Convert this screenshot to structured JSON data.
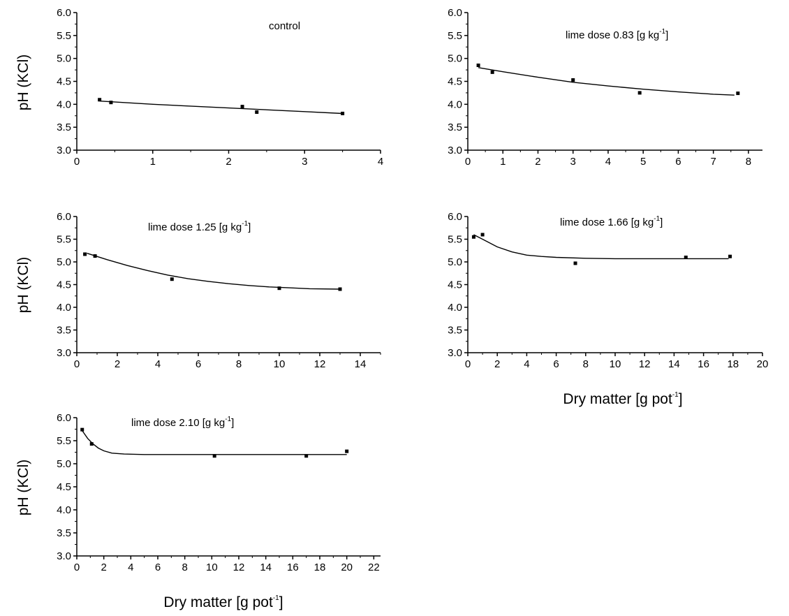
{
  "chart_data": [
    {
      "type": "scatter",
      "title": "control",
      "title_unit": "",
      "title_sup": "",
      "title_close": "",
      "ylabel": "pH (KCl)",
      "xlabel": "",
      "xlabel_sup": "",
      "xlabel_close": "",
      "xlim": [
        0,
        4
      ],
      "ylim": [
        3.0,
        6.0
      ],
      "xticks": [
        "0",
        "1",
        "2",
        "3",
        "4"
      ],
      "yticks": [
        "3.0",
        "3.5",
        "4.0",
        "4.5",
        "5.0",
        "5.5",
        "6.0"
      ],
      "series": [
        {
          "points": [
            [
              0.3,
              4.1
            ],
            [
              0.45,
              4.04
            ],
            [
              2.18,
              3.95
            ],
            [
              2.37,
              3.83
            ],
            [
              3.5,
              3.8
            ]
          ],
          "fit": [
            [
              0.3,
              4.07
            ],
            [
              1.0,
              4.0
            ],
            [
              2.0,
              3.92
            ],
            [
              3.0,
              3.84
            ],
            [
              3.5,
              3.8
            ]
          ]
        }
      ]
    },
    {
      "type": "scatter",
      "title": "lime dose 0.83 [g kg",
      "title_unit": "",
      "title_sup": "-1",
      "title_close": "]",
      "ylabel": "",
      "xlabel": "",
      "xlabel_sup": "",
      "xlabel_close": "",
      "xlim": [
        0,
        8.4
      ],
      "ylim": [
        3.0,
        6.0
      ],
      "xticks": [
        "0",
        "1",
        "2",
        "3",
        "4",
        "5",
        "6",
        "7",
        "8"
      ],
      "yticks": [
        "3.0",
        "3.5",
        "4.0",
        "4.5",
        "5.0",
        "5.5",
        "6.0"
      ],
      "series": [
        {
          "points": [
            [
              0.3,
              4.85
            ],
            [
              0.7,
              4.7
            ],
            [
              3.0,
              4.53
            ],
            [
              4.9,
              4.25
            ],
            [
              7.7,
              4.24
            ]
          ],
          "fit": [
            [
              0.3,
              4.8
            ],
            [
              1.0,
              4.71
            ],
            [
              2.0,
              4.59
            ],
            [
              3.0,
              4.48
            ],
            [
              4.0,
              4.4
            ],
            [
              5.0,
              4.33
            ],
            [
              6.0,
              4.27
            ],
            [
              7.0,
              4.22
            ],
            [
              7.6,
              4.2
            ]
          ]
        }
      ]
    },
    {
      "type": "scatter",
      "title": "lime dose 1.25 [g kg",
      "title_unit": "",
      "title_sup": "-1",
      "title_close": "]",
      "ylabel": "pH (KCl)",
      "xlabel": "",
      "xlabel_sup": "",
      "xlabel_close": "",
      "xlim": [
        0,
        15
      ],
      "ylim": [
        3.0,
        6.0
      ],
      "xticks": [
        "0",
        "2",
        "4",
        "6",
        "8",
        "10",
        "12",
        "14"
      ],
      "yticks": [
        "3.0",
        "3.5",
        "4.0",
        "4.5",
        "5.0",
        "5.5",
        "6.0"
      ],
      "series": [
        {
          "points": [
            [
              0.4,
              5.17
            ],
            [
              0.9,
              5.13
            ],
            [
              4.7,
              4.62
            ],
            [
              10.0,
              4.42
            ],
            [
              13.0,
              4.4
            ]
          ],
          "fit": [
            [
              0.5,
              5.19
            ],
            [
              1.5,
              5.05
            ],
            [
              2.5,
              4.92
            ],
            [
              3.5,
              4.81
            ],
            [
              4.5,
              4.71
            ],
            [
              5.5,
              4.63
            ],
            [
              6.5,
              4.57
            ],
            [
              7.5,
              4.52
            ],
            [
              8.5,
              4.48
            ],
            [
              9.5,
              4.45
            ],
            [
              10.5,
              4.43
            ],
            [
              11.5,
              4.41
            ],
            [
              13.0,
              4.4
            ]
          ]
        }
      ]
    },
    {
      "type": "scatter",
      "title": "lime dose 1.66 [g kg",
      "title_unit": "",
      "title_sup": "-1",
      "title_close": "]",
      "ylabel": "",
      "xlabel": "Dry matter [g pot",
      "xlabel_sup": "-1",
      "xlabel_close": "]",
      "xlim": [
        0,
        20
      ],
      "ylim": [
        3.0,
        6.0
      ],
      "xticks": [
        "0",
        "2",
        "4",
        "6",
        "8",
        "10",
        "12",
        "14",
        "16",
        "18",
        "20"
      ],
      "yticks": [
        "3.0",
        "3.5",
        "4.0",
        "4.5",
        "5.0",
        "5.5",
        "6.0"
      ],
      "series": [
        {
          "points": [
            [
              0.4,
              5.55
            ],
            [
              1.0,
              5.6
            ],
            [
              7.3,
              4.97
            ],
            [
              14.8,
              5.1
            ],
            [
              17.8,
              5.12
            ]
          ],
          "fit": [
            [
              0.4,
              5.6
            ],
            [
              1.0,
              5.5
            ],
            [
              2.0,
              5.33
            ],
            [
              3.0,
              5.22
            ],
            [
              4.0,
              5.15
            ],
            [
              5.0,
              5.12
            ],
            [
              6.0,
              5.1
            ],
            [
              8.0,
              5.08
            ],
            [
              10.0,
              5.07
            ],
            [
              14.0,
              5.07
            ],
            [
              17.7,
              5.07
            ]
          ]
        }
      ]
    },
    {
      "type": "scatter",
      "title": "lime dose 2.10 [g kg",
      "title_unit": "",
      "title_sup": "-1",
      "title_close": "]",
      "ylabel": "pH (KCl)",
      "xlabel": "Dry matter [g pot",
      "xlabel_sup": "-1",
      "xlabel_close": "]",
      "xlim": [
        0,
        22.5
      ],
      "ylim": [
        3.0,
        6.0
      ],
      "xticks": [
        "0",
        "2",
        "4",
        "6",
        "8",
        "10",
        "12",
        "14",
        "16",
        "18",
        "20",
        "22"
      ],
      "yticks": [
        "3.0",
        "3.5",
        "4.0",
        "4.5",
        "5.0",
        "5.5",
        "6.0"
      ],
      "series": [
        {
          "points": [
            [
              0.4,
              5.74
            ],
            [
              1.1,
              5.43
            ],
            [
              10.2,
              5.17
            ],
            [
              17.0,
              5.17
            ],
            [
              20.0,
              5.27
            ]
          ],
          "fit": [
            [
              0.4,
              5.72
            ],
            [
              0.8,
              5.55
            ],
            [
              1.2,
              5.43
            ],
            [
              1.6,
              5.34
            ],
            [
              2.0,
              5.28
            ],
            [
              2.6,
              5.23
            ],
            [
              3.5,
              5.21
            ],
            [
              5.0,
              5.2
            ],
            [
              10.0,
              5.2
            ],
            [
              20.0,
              5.2
            ]
          ]
        }
      ]
    }
  ]
}
